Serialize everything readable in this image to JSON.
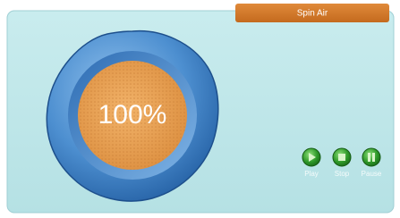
{
  "header": {
    "title": "Spin Air"
  },
  "dial": {
    "label": "100%"
  },
  "controls": [
    {
      "label": "Play"
    },
    {
      "label": "Stop"
    },
    {
      "label": "Pause"
    }
  ]
}
